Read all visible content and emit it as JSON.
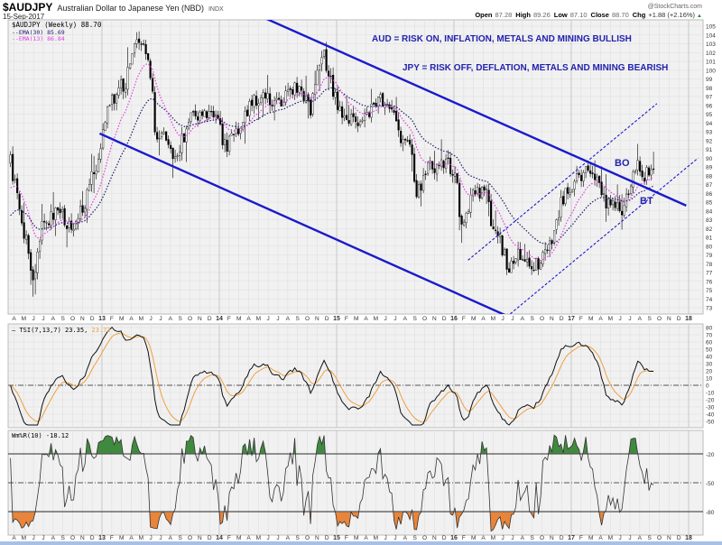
{
  "header": {
    "symbol": "$AUDJPY",
    "name": "Australian Dollar to Japanese Yen (NBD)",
    "exchange": "INDX",
    "date": "15-Sep-2017",
    "watermark": "@StockCharts.com",
    "open_label": "Open",
    "open": "87.28",
    "high_label": "High",
    "high": "89.26",
    "low_label": "Low",
    "low": "87.10",
    "close_label": "Close",
    "close": "88.70",
    "chg_label": "Chg",
    "chg": "+1.88 (+2.16%)",
    "chg_arrow": "▲"
  },
  "legend": {
    "price": "$AUDJPY (Weekly) 88.70",
    "ema30": "EMA(30) 85.69",
    "ema13": "EMA(13) 86.84",
    "tsi": "TSI(7,13,7) 23.35,",
    "tsi_signal": "23.72",
    "willr": "Wm%R(10) -18.12"
  },
  "annotations": {
    "aud": "AUD = RISK ON, INFLATION, METALS AND MINING BULLISH",
    "jpy": "JPY = RISK OFF, DEFLATION, METALS AND MINING BEARISH",
    "bo": "BO",
    "bt": "BT"
  },
  "colors": {
    "trendline": "#1a1acc",
    "ema30": "#1c1c6e",
    "ema13": "#e040e0",
    "tsi_signal": "#f0a040",
    "willr_overbought": "#3f8a3f",
    "willr_oversold": "#e8853a",
    "panel_bg": "#f1f1f1",
    "annotation_text": "#2222b0"
  },
  "chart_data": {
    "type": "candlestick",
    "title": "$AUDJPY Australian Dollar to Japanese Yen (NBD) Weekly",
    "x_range": [
      2012.22,
      2018.12
    ],
    "month_initials": [
      "J",
      "F",
      "M",
      "A",
      "M",
      "J",
      "J",
      "A",
      "S",
      "O",
      "N",
      "D"
    ],
    "price_axis": {
      "ylim": [
        73,
        105
      ],
      "ticks": [
        73,
        74,
        75,
        76,
        77,
        78,
        79,
        80,
        81,
        82,
        83,
        84,
        85,
        86,
        87,
        88,
        89,
        90,
        91,
        92,
        93,
        94,
        95,
        96,
        97,
        98,
        99,
        100,
        101,
        102,
        103,
        104,
        105
      ]
    },
    "price_keypoints": [
      [
        2012.22,
        89.5
      ],
      [
        2012.28,
        85.4
      ],
      [
        2012.42,
        76.2
      ],
      [
        2012.48,
        82.0
      ],
      [
        2012.61,
        84.0
      ],
      [
        2012.77,
        82.0
      ],
      [
        2012.86,
        85.4
      ],
      [
        2012.98,
        90.5
      ],
      [
        2013.05,
        95.7
      ],
      [
        2013.21,
        99.0
      ],
      [
        2013.28,
        103.0
      ],
      [
        2013.38,
        102.0
      ],
      [
        2013.42,
        99.0
      ],
      [
        2013.45,
        93.0
      ],
      [
        2013.55,
        92.3
      ],
      [
        2013.63,
        89.5
      ],
      [
        2013.69,
        92.3
      ],
      [
        2013.75,
        94.6
      ],
      [
        2013.98,
        94.6
      ],
      [
        2014.05,
        91.3
      ],
      [
        2014.17,
        93.6
      ],
      [
        2014.28,
        96.7
      ],
      [
        2014.52,
        96.7
      ],
      [
        2014.67,
        98.4
      ],
      [
        2014.78,
        95.7
      ],
      [
        2014.88,
        102.5
      ],
      [
        2014.94,
        99.0
      ],
      [
        2015.04,
        95.0
      ],
      [
        2015.11,
        94.3
      ],
      [
        2015.21,
        93.6
      ],
      [
        2015.35,
        96.7
      ],
      [
        2015.48,
        96.4
      ],
      [
        2015.53,
        92.3
      ],
      [
        2015.63,
        91.6
      ],
      [
        2015.67,
        85.4
      ],
      [
        2015.78,
        88.8
      ],
      [
        2015.92,
        89.8
      ],
      [
        2016.02,
        88.2
      ],
      [
        2016.05,
        82.6
      ],
      [
        2016.17,
        86.1
      ],
      [
        2016.28,
        86.4
      ],
      [
        2016.32,
        82.6
      ],
      [
        2016.4,
        80.3
      ],
      [
        2016.46,
        77.5
      ],
      [
        2016.55,
        79.2
      ],
      [
        2016.67,
        77.5
      ],
      [
        2016.75,
        78.5
      ],
      [
        2016.85,
        81.0
      ],
      [
        2016.92,
        85.4
      ],
      [
        2016.98,
        86.7
      ],
      [
        2017.13,
        88.5
      ],
      [
        2017.22,
        88.2
      ],
      [
        2017.28,
        85.1
      ],
      [
        2017.36,
        84.4
      ],
      [
        2017.44,
        83.7
      ],
      [
        2017.5,
        86.7
      ],
      [
        2017.55,
        89.2
      ],
      [
        2017.62,
        88.2
      ],
      [
        2017.67,
        88.2
      ],
      [
        2017.71,
        88.7
      ]
    ],
    "overlays": [
      {
        "name": "EMA(30)",
        "value": 85.69
      },
      {
        "name": "EMA(13)",
        "value": 86.84
      }
    ],
    "trendlines": [
      {
        "name": "upper-channel",
        "style": "solid",
        "from": [
          2014.34,
          106.2
        ],
        "to": [
          2017.98,
          84.6
        ]
      },
      {
        "name": "lower-channel",
        "style": "solid",
        "from": [
          2012.98,
          92.8
        ],
        "to": [
          2016.48,
          71.9
        ]
      },
      {
        "name": "rising-channel-top",
        "style": "dashed",
        "from": [
          2016.12,
          78.4
        ],
        "to": [
          2017.73,
          96.2
        ]
      },
      {
        "name": "rising-channel-bottom",
        "style": "dashed",
        "from": [
          2016.48,
          72.3
        ],
        "to": [
          2018.08,
          90.0
        ]
      }
    ],
    "tsi": {
      "params": [
        7,
        13,
        7
      ],
      "value": 23.35,
      "signal": 23.72,
      "ylim": [
        -50,
        80
      ],
      "ticks": [
        80,
        70,
        60,
        50,
        40,
        30,
        20,
        10,
        0,
        -10,
        -20,
        -30,
        -40,
        -50
      ]
    },
    "williams_r": {
      "period": 10,
      "value": -18.12,
      "ylim": [
        -100,
        0
      ],
      "ticks": [
        -20,
        -50,
        -80
      ]
    }
  }
}
